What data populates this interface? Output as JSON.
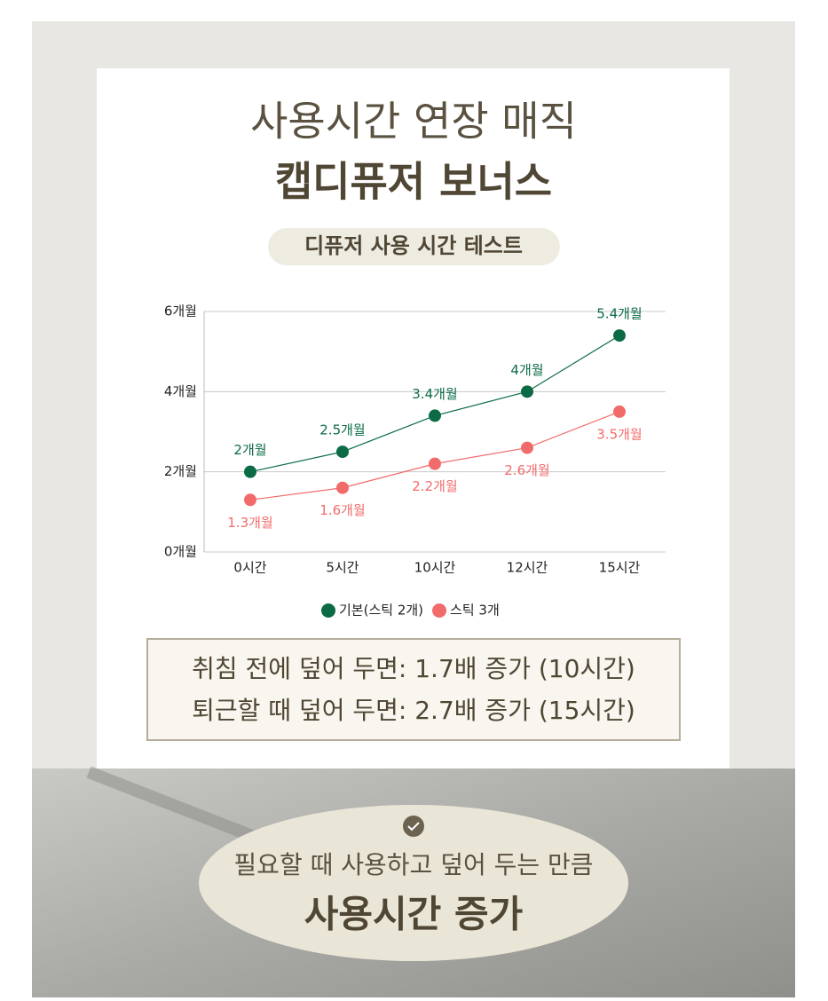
{
  "header": {
    "title_line1": "사용시간 연장 매직",
    "title_line2": "캡디퓨저 보너스",
    "badge": "디퓨저 사용 시간 테스트"
  },
  "chart_data": {
    "type": "line",
    "categories": [
      "0시간",
      "5시간",
      "10시간",
      "12시간",
      "15시간"
    ],
    "series": [
      {
        "name": "기본(스틱 2개)",
        "color": "#0b6b45",
        "values": [
          2,
          2.5,
          3.4,
          4,
          5.4
        ],
        "value_labels": [
          "2개월",
          "2.5개월",
          "3.4개월",
          "4개월",
          "5.4개월"
        ]
      },
      {
        "name": "스틱 3개",
        "color": "#f26b6b",
        "values": [
          1.3,
          1.6,
          2.2,
          2.6,
          3.5
        ],
        "value_labels": [
          "1.3개월",
          "1.6개월",
          "2.2개월",
          "2.6개월",
          "3.5개월"
        ]
      }
    ],
    "ylim": [
      0,
      6
    ],
    "yticks": [
      {
        "value": 0,
        "label": "0개월"
      },
      {
        "value": 2,
        "label": "2개월"
      },
      {
        "value": 4,
        "label": "4개월"
      },
      {
        "value": 6,
        "label": "6개월"
      }
    ],
    "grid": true
  },
  "info": {
    "lines": [
      "취침 전에 덮어 두면: 1.7배 증가 (10시간)",
      "퇴근할 때 덮어 두면: 2.7배 증가 (15시간)"
    ]
  },
  "footer": {
    "subtitle": "필요할 때 사용하고 덮어 두는 만큼",
    "title": "사용시간 증가"
  }
}
